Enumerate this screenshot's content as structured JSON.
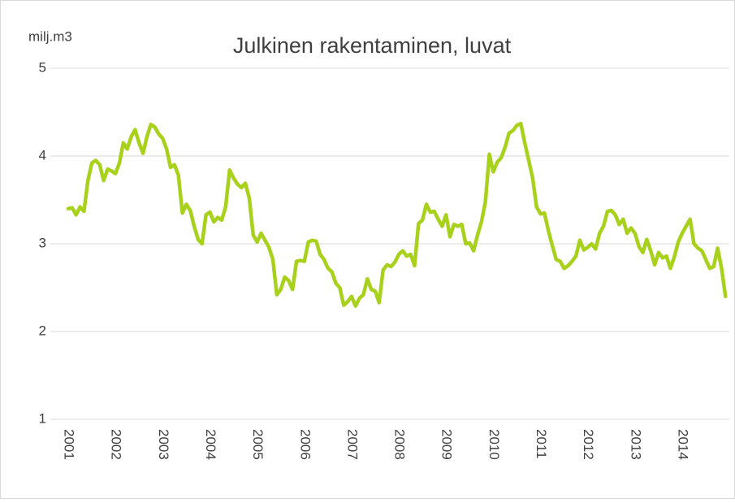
{
  "chart_data": {
    "type": "line",
    "title": "Julkinen rakentaminen, luvat",
    "y_label": "milj.m3",
    "categories": [
      "2001",
      null,
      null,
      null,
      null,
      null,
      null,
      null,
      null,
      null,
      null,
      null,
      "2002",
      null,
      null,
      null,
      null,
      null,
      null,
      null,
      null,
      null,
      null,
      null,
      "2003",
      null,
      null,
      null,
      null,
      null,
      null,
      null,
      null,
      null,
      null,
      null,
      "2004",
      null,
      null,
      null,
      null,
      null,
      null,
      null,
      null,
      null,
      null,
      null,
      "2005",
      null,
      null,
      null,
      null,
      null,
      null,
      null,
      null,
      null,
      null,
      null,
      "2006",
      null,
      null,
      null,
      null,
      null,
      null,
      null,
      null,
      null,
      null,
      null,
      "2007",
      null,
      null,
      null,
      null,
      null,
      null,
      null,
      null,
      null,
      null,
      null,
      "2008",
      null,
      null,
      null,
      null,
      null,
      null,
      null,
      null,
      null,
      null,
      null,
      "2009",
      null,
      null,
      null,
      null,
      null,
      null,
      null,
      null,
      null,
      null,
      null,
      "2010",
      null,
      null,
      null,
      null,
      null,
      null,
      null,
      null,
      null,
      null,
      null,
      "2011",
      null,
      null,
      null,
      null,
      null,
      null,
      null,
      null,
      null,
      null,
      null,
      "2012",
      null,
      null,
      null,
      null,
      null,
      null,
      null,
      null,
      null,
      null,
      null,
      "2013",
      null,
      null,
      null,
      null,
      null,
      null,
      null,
      null,
      null,
      null,
      null,
      "2014",
      null,
      null,
      null,
      null,
      null,
      null,
      null,
      null,
      null,
      null,
      null
    ],
    "values": [
      3.4,
      3.41,
      3.33,
      3.42,
      3.37,
      3.72,
      3.92,
      3.95,
      3.9,
      3.72,
      3.85,
      3.83,
      3.8,
      3.92,
      4.15,
      4.08,
      4.22,
      4.3,
      4.15,
      4.03,
      4.22,
      4.36,
      4.33,
      4.25,
      4.2,
      4.08,
      3.87,
      3.9,
      3.78,
      3.35,
      3.45,
      3.38,
      3.2,
      3.05,
      3.0,
      3.33,
      3.36,
      3.25,
      3.3,
      3.27,
      3.42,
      3.84,
      3.75,
      3.68,
      3.64,
      3.69,
      3.52,
      3.1,
      3.02,
      3.12,
      3.04,
      2.96,
      2.82,
      2.42,
      2.48,
      2.62,
      2.58,
      2.48,
      2.8,
      2.81,
      2.8,
      3.02,
      3.04,
      3.03,
      2.88,
      2.82,
      2.72,
      2.68,
      2.55,
      2.5,
      2.3,
      2.34,
      2.4,
      2.29,
      2.38,
      2.42,
      2.6,
      2.48,
      2.46,
      2.33,
      2.7,
      2.76,
      2.74,
      2.79,
      2.88,
      2.92,
      2.86,
      2.88,
      2.75,
      3.23,
      3.27,
      3.45,
      3.36,
      3.37,
      3.28,
      3.2,
      3.33,
      3.08,
      3.22,
      3.2,
      3.22,
      3.0,
      3.01,
      2.92,
      3.1,
      3.25,
      3.48,
      4.02,
      3.82,
      3.93,
      3.98,
      4.1,
      4.26,
      4.29,
      4.35,
      4.37,
      4.15,
      3.95,
      3.75,
      3.42,
      3.34,
      3.35,
      3.15,
      2.98,
      2.82,
      2.8,
      2.72,
      2.75,
      2.8,
      2.86,
      3.04,
      2.93,
      2.96,
      3.0,
      2.94,
      3.12,
      3.2,
      3.37,
      3.38,
      3.33,
      3.22,
      3.28,
      3.12,
      3.18,
      3.12,
      2.97,
      2.9,
      3.05,
      2.92,
      2.76,
      2.9,
      2.84,
      2.86,
      2.72,
      2.85,
      3.02,
      3.12,
      3.2,
      3.28,
      3.0,
      2.95,
      2.92,
      2.82,
      2.72,
      2.74,
      2.95,
      2.72,
      2.4
    ],
    "color": "#a8d11c",
    "ylim": [
      1,
      5
    ],
    "yticks": [
      1,
      2,
      3,
      4,
      5
    ],
    "grid": true
  }
}
